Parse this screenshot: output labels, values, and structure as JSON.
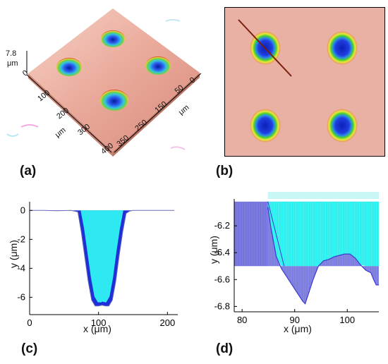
{
  "figure": {
    "panel_labels": {
      "a": "(a)",
      "b": "(b)",
      "c": "(c)",
      "d": "(d)"
    }
  },
  "panel_a": {
    "z_value": "7.8",
    "z_unit": "μm",
    "left_axis_ticks": [
      "0",
      "100",
      "200",
      "300",
      "400"
    ],
    "left_axis_unit": "μm",
    "right_axis_ticks": [
      "50",
      "150",
      "250",
      "350"
    ],
    "right_axis_unit": "μm",
    "right_axis_tick_near": "0"
  },
  "panel_b": {
    "description_colors": {
      "background": "#e9b1a3",
      "pit_core": "#1a2fd8",
      "ring_green": "#49d12c",
      "ring_yellow": "#e8e83a",
      "line": "#7a1f0c"
    }
  },
  "chart_data": [
    {
      "type": "area",
      "panel": "c",
      "xlabel": "x (μm)",
      "ylabel": "y (μm)",
      "xlim": [
        0,
        215
      ],
      "ylim": [
        -7.2,
        0.6
      ],
      "xticks": [
        "0",
        "100",
        "200"
      ],
      "yticks": [
        "0",
        "-2",
        "-4",
        "-6"
      ],
      "series": [
        {
          "x": [
            0,
            20,
            40,
            60,
            70,
            75,
            80,
            85,
            90,
            95,
            100,
            105,
            110,
            115,
            120,
            125,
            130,
            135,
            140,
            145,
            150,
            160,
            180,
            200,
            210
          ],
          "y": [
            0,
            0,
            -0.02,
            0,
            -0.1,
            -1.5,
            -3.2,
            -4.9,
            -6.2,
            -6.6,
            -6.6,
            -6.55,
            -6.6,
            -6.6,
            -6.2,
            -4.9,
            -3.1,
            -1.5,
            -0.2,
            -0.05,
            0,
            0,
            0,
            0,
            0
          ]
        }
      ],
      "colors": {
        "profile": "#1e2fd8",
        "fill": "#2ff3f2",
        "line": "#6a6ab8"
      }
    },
    {
      "type": "area",
      "panel": "d",
      "xlabel": "x (μm)",
      "ylabel": "y (μm)",
      "xlim": [
        78.5,
        106
      ],
      "ylim": [
        -6.84,
        -6.0
      ],
      "xticks": [
        "80",
        "90",
        "100"
      ],
      "yticks": [
        "-6.2",
        "-6.4",
        "-6.6",
        "-6.8"
      ],
      "series": [
        {
          "x": [
            84.9,
            85.5,
            86.5,
            87.5,
            88.5,
            89.5,
            90.5,
            91.5,
            92.0,
            92.5,
            93.5,
            94.5,
            95.5,
            96.5,
            97.5,
            98.5,
            99.5,
            100.5,
            101.5,
            102.5,
            103.5,
            104.5,
            105.0,
            105.5,
            106.0
          ],
          "y": [
            -6.06,
            -6.22,
            -6.43,
            -6.52,
            -6.58,
            -6.64,
            -6.7,
            -6.76,
            -6.78,
            -6.72,
            -6.6,
            -6.5,
            -6.46,
            -6.45,
            -6.43,
            -6.42,
            -6.41,
            -6.41,
            -6.44,
            -6.49,
            -6.53,
            -6.55,
            -6.6,
            -6.64,
            -6.64
          ]
        }
      ],
      "reference_level": -6.5,
      "colors": {
        "profile": "#3a3ad0",
        "fill": "#29f0ee",
        "hatch": "#4040d0"
      }
    }
  ]
}
